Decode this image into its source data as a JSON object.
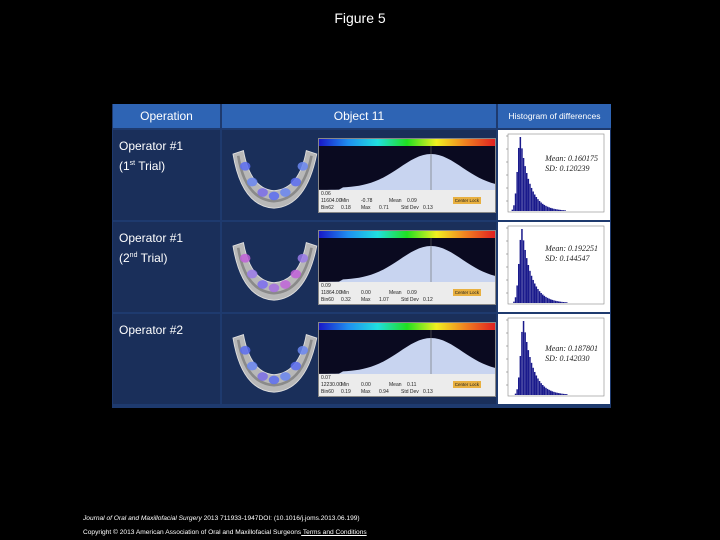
{
  "figure_title": "Figure 5",
  "table": {
    "headers": {
      "operation": "Operation",
      "object": "Object 11",
      "histogram": "Histogram of differences"
    },
    "rows": [
      {
        "op_line1": "Operator #1",
        "op_line2_a": "(1",
        "op_line2_sup": "st",
        "op_line2_b": " Trial)",
        "stats": {
          "t1": "0.06",
          "t2": "11604.00",
          "t3": "Min",
          "t4": "-0.78",
          "t5": "Mean",
          "t6": "0.09",
          "t7": "Bin62",
          "t8": "0.18",
          "t9": "Max",
          "t10": "0.71",
          "t11": "Std Dev",
          "t12": "0.13"
        },
        "center_btn": "Center Lock",
        "mean": "Mean: 0.160175",
        "sd": "SD: 0.120239"
      },
      {
        "op_line1": "Operator #1",
        "op_line2_a": "(2",
        "op_line2_sup": "nd",
        "op_line2_b": " Trial)",
        "stats": {
          "t1": "0.09",
          "t2": "11864.00",
          "t3": "Min",
          "t4": "0.00",
          "t5": "Mean",
          "t6": "0.09",
          "t7": "Bin60",
          "t8": "0.32",
          "t9": "Max",
          "t10": "1.07",
          "t11": "Std Dev",
          "t12": "0.12"
        },
        "center_btn": "Center Lock",
        "mean": "Mean: 0.192251",
        "sd": "SD: 0.144547"
      },
      {
        "op_line1": "Operator #2",
        "op_line2_a": "",
        "op_line2_sup": "",
        "op_line2_b": "",
        "stats": {
          "t1": "0.07",
          "t2": "12230.00",
          "t3": "Min",
          "t4": "0.00",
          "t5": "Mean",
          "t6": "0.11",
          "t7": "Bin60",
          "t8": "0.19",
          "t9": "Max",
          "t10": "0.94",
          "t11": "Std Dev",
          "t12": "0.13"
        },
        "center_btn": "Center Lock",
        "mean": "Mean: 0.187801",
        "sd": "SD: 0.142030"
      }
    ]
  },
  "footer": {
    "journal": "Journal of Oral and Maxillofacial Surgery",
    "citation": " 2013 711933-1947DOI: (10.1016/j.joms.2013.06.199)",
    "copyright": "Copyright © 2013 American Association of Oral and Maxillofacial Surgeons",
    "terms": " Terms and Conditions"
  },
  "colors": {
    "header": "#2e64b4",
    "cell": "#1a2f5a",
    "hist_bar": "#1a1a8c"
  }
}
